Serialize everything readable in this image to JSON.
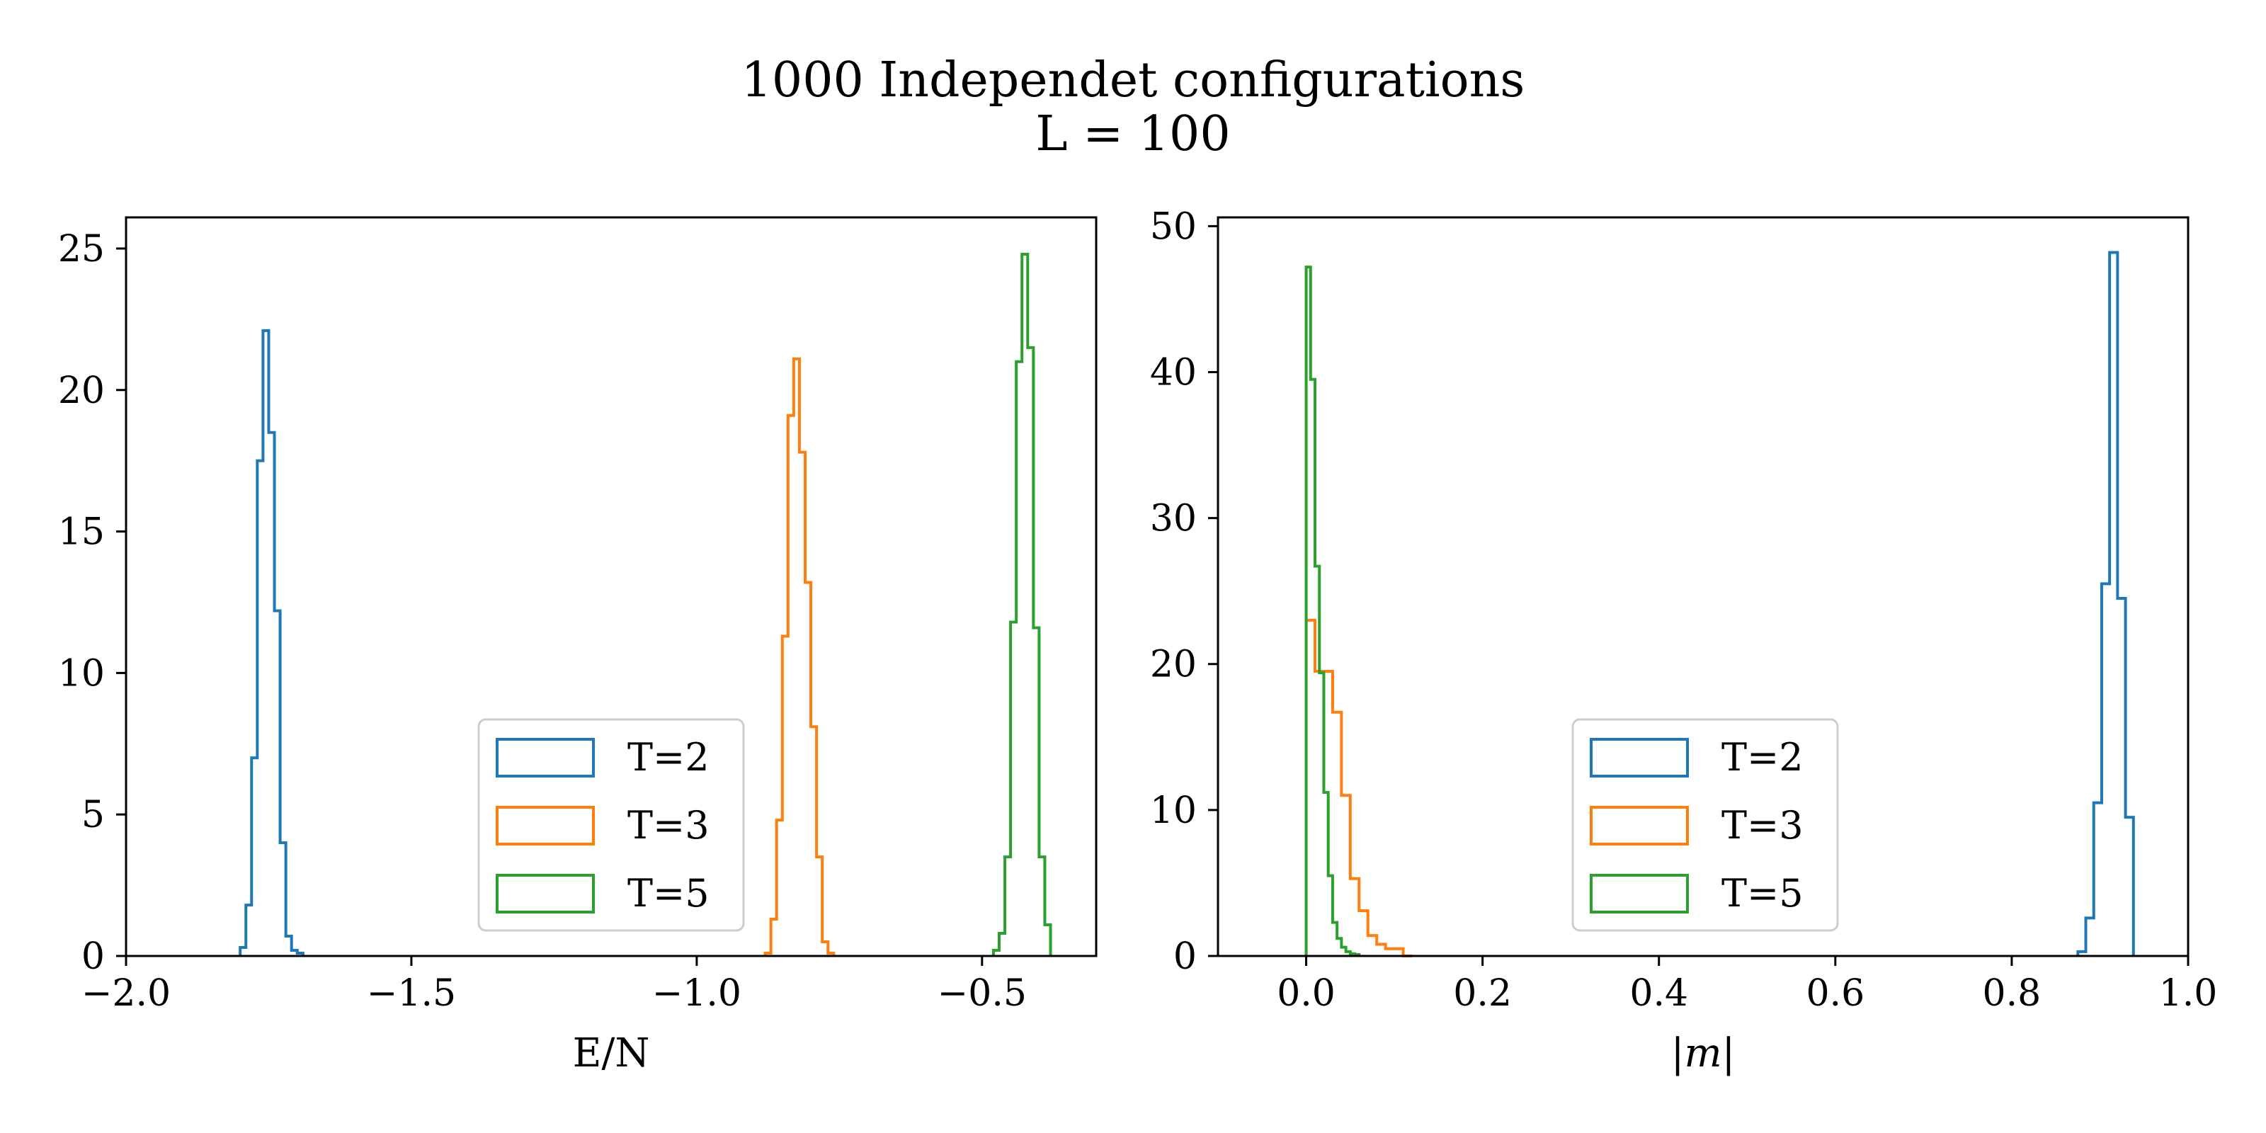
{
  "figure": {
    "title_line1": "1000 Independet configurations",
    "title_line2": "L = 100"
  },
  "colors": {
    "T2": "#1f77b4",
    "T3": "#ff7f0e",
    "T5": "#2ca02c"
  },
  "chart_data": [
    {
      "type": "histogram",
      "histtype": "step",
      "title": "",
      "xlabel": "E/N",
      "ylabel": "",
      "xlim": [
        -2.0,
        -0.3
      ],
      "ylim": [
        0,
        26.1
      ],
      "xticks": [
        -2.0,
        -1.5,
        -1.0,
        -0.5
      ],
      "xtick_labels": [
        "−2.0",
        "−1.5",
        "−1.0",
        "−0.5"
      ],
      "yticks": [
        0,
        5,
        10,
        15,
        20,
        25
      ],
      "ytick_labels": [
        "0",
        "5",
        "10",
        "15",
        "20",
        "25"
      ],
      "grid": false,
      "legend": {
        "position": "lower-center-right",
        "entries": [
          "T=2",
          "T=3",
          "T=5"
        ]
      },
      "series": [
        {
          "name": "T=2",
          "color": "#1f77b4",
          "edges": [
            -1.8,
            -1.79,
            -1.78,
            -1.77,
            -1.76,
            -1.75,
            -1.74,
            -1.73,
            -1.72,
            -1.71,
            -1.7,
            -1.69
          ],
          "counts": [
            0.3,
            1.8,
            7.0,
            17.5,
            22.1,
            18.5,
            12.2,
            4.0,
            0.7,
            0.2,
            0.1
          ]
        },
        {
          "name": "T=3",
          "color": "#ff7f0e",
          "edges": [
            -0.88,
            -0.87,
            -0.86,
            -0.85,
            -0.84,
            -0.83,
            -0.82,
            -0.81,
            -0.8,
            -0.79,
            -0.78,
            -0.77,
            -0.76
          ],
          "counts": [
            0.1,
            1.3,
            4.8,
            11.3,
            19.1,
            21.1,
            17.8,
            13.2,
            8.1,
            3.5,
            0.5,
            0.1
          ]
        },
        {
          "name": "T=5",
          "color": "#2ca02c",
          "edges": [
            -0.48,
            -0.47,
            -0.46,
            -0.45,
            -0.44,
            -0.43,
            -0.42,
            -0.41,
            -0.4,
            -0.39,
            -0.38
          ],
          "counts": [
            0.2,
            0.8,
            3.5,
            11.8,
            21.0,
            24.8,
            21.5,
            11.6,
            3.5,
            1.1
          ]
        }
      ]
    },
    {
      "type": "histogram",
      "histtype": "step",
      "title": "",
      "xlabel": "|m|",
      "ylabel": "",
      "xlim": [
        -0.1,
        1.0
      ],
      "ylim": [
        0,
        50.6
      ],
      "xticks": [
        0.0,
        0.2,
        0.4,
        0.6,
        0.8,
        1.0
      ],
      "xtick_labels": [
        "0.0",
        "0.2",
        "0.4",
        "0.6",
        "0.8",
        "1.0"
      ],
      "yticks": [
        0,
        10,
        20,
        30,
        40,
        50
      ],
      "ytick_labels": [
        "0",
        "10",
        "20",
        "30",
        "40",
        "50"
      ],
      "grid": false,
      "legend": {
        "position": "lower-center",
        "entries": [
          "T=2",
          "T=3",
          "T=5"
        ]
      },
      "series": [
        {
          "name": "T=2",
          "color": "#1f77b4",
          "edges": [
            0.875,
            0.884,
            0.893,
            0.902,
            0.911,
            0.92,
            0.929,
            0.938
          ],
          "counts": [
            0.3,
            2.6,
            10.5,
            25.5,
            48.2,
            24.5,
            9.5
          ]
        },
        {
          "name": "T=3",
          "color": "#ff7f0e",
          "edges": [
            0.0,
            0.01,
            0.02,
            0.03,
            0.04,
            0.05,
            0.06,
            0.07,
            0.08,
            0.09,
            0.1,
            0.11,
            0.12
          ],
          "counts": [
            23.0,
            19.5,
            19.5,
            16.7,
            11.0,
            5.3,
            3.1,
            1.4,
            0.8,
            0.5,
            0.5,
            0.0
          ]
        },
        {
          "name": "T=5",
          "color": "#2ca02c",
          "edges": [
            0.0,
            0.005,
            0.01,
            0.015,
            0.02,
            0.025,
            0.03,
            0.035,
            0.04,
            0.045,
            0.05,
            0.055,
            0.06
          ],
          "counts": [
            47.2,
            39.5,
            26.7,
            19.4,
            11.2,
            5.5,
            2.3,
            1.2,
            0.6,
            0.3,
            0.15,
            0.1
          ]
        }
      ]
    }
  ]
}
